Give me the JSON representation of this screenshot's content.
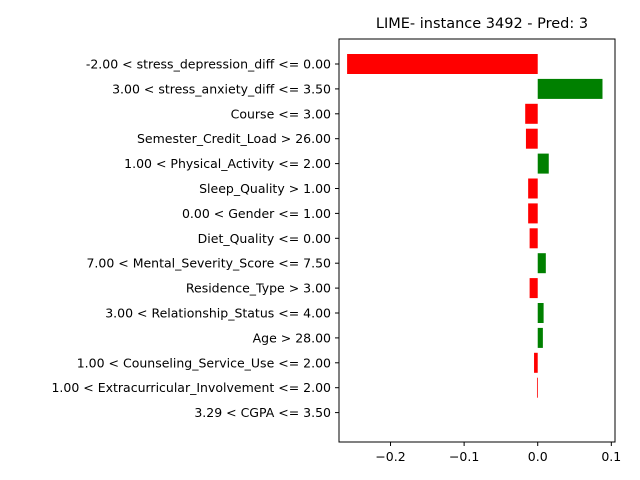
{
  "chart_data": {
    "type": "bar",
    "orientation": "horizontal",
    "title": "LIME- instance 3492 - Pred: 3",
    "xlabel": "",
    "ylabel": "",
    "xlim": [
      -0.27,
      0.105
    ],
    "xticks": [
      -0.2,
      -0.1,
      0.0,
      0.1
    ],
    "xtick_labels": [
      "−0.2",
      "−0.1",
      "0.0",
      "0.1"
    ],
    "grid": false,
    "positive_color": "#008000",
    "negative_color": "#ff0000",
    "categories": [
      "-2.00 < stress_depression_diff <= 0.00",
      "3.00 < stress_anxiety_diff <= 3.50",
      "Course <= 3.00",
      "Semester_Credit_Load > 26.00",
      "1.00 < Physical_Activity <= 2.00",
      "Sleep_Quality > 1.00",
      "0.00 < Gender <= 1.00",
      "Diet_Quality <= 0.00",
      "7.00 < Mental_Severity_Score <= 7.50",
      "Residence_Type > 3.00",
      "3.00 < Relationship_Status <= 4.00",
      "Age > 28.00",
      "1.00 < Counseling_Service_Use <= 2.00",
      "1.00 < Extracurricular_Involvement <= 2.00",
      "3.29 < CGPA <= 3.50"
    ],
    "values": [
      -0.259,
      0.088,
      -0.017,
      -0.016,
      0.015,
      -0.013,
      -0.013,
      -0.011,
      0.011,
      -0.011,
      0.008,
      0.007,
      -0.005,
      -0.001,
      0.0
    ]
  }
}
